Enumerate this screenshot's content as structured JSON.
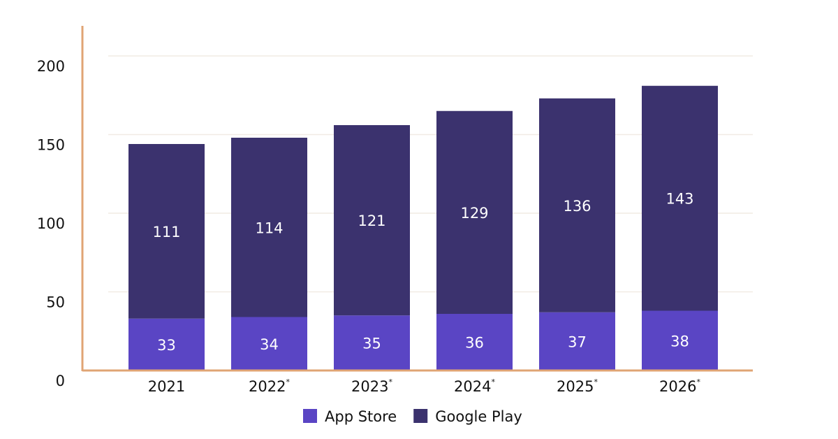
{
  "chart_data": {
    "type": "bar",
    "stacked": true,
    "categories": [
      "2021",
      "2022",
      "2023",
      "2024",
      "2025",
      "2026"
    ],
    "category_marks": [
      "",
      "*",
      "*",
      "*",
      "*",
      "*"
    ],
    "series": [
      {
        "name": "App Store",
        "color": "#5a45c4",
        "values": [
          33,
          34,
          35,
          36,
          37,
          38
        ]
      },
      {
        "name": "Google Play",
        "color": "#3b326e",
        "values": [
          111,
          114,
          121,
          129,
          136,
          143
        ]
      }
    ],
    "yticks": [
      0,
      50,
      100,
      150,
      200
    ],
    "ylim": [
      0,
      200
    ],
    "grid": true,
    "legend": "bottom",
    "axis_color": "#e0a474",
    "grid_color": "#f1ebe4"
  }
}
